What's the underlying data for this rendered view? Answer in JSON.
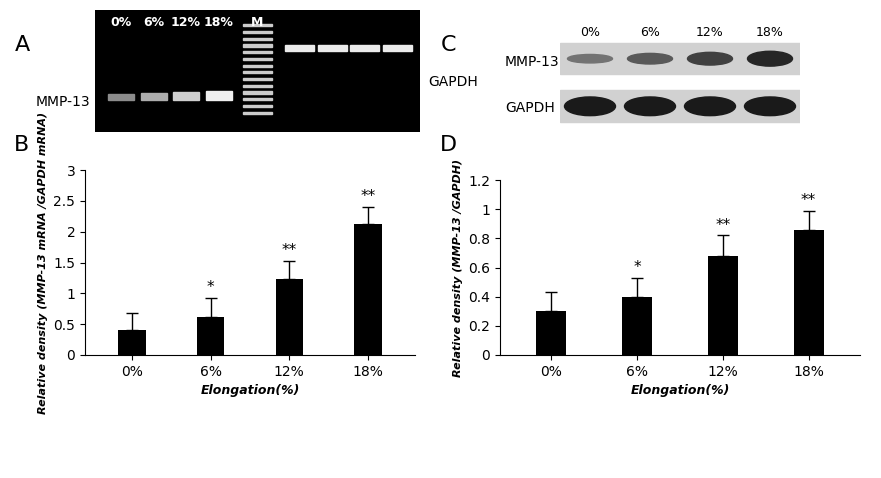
{
  "panel_labels": [
    "A",
    "B",
    "C",
    "D"
  ],
  "gels": [
    {
      "lanes": [
        "0%",
        "6%",
        "12%",
        "18%",
        "M"
      ],
      "bands": [
        "MMP-13",
        "GAPDH"
      ]
    },
    {
      "lanes": [
        "0%",
        "6%",
        "12%",
        "18%"
      ],
      "bands": [
        "MMP-13",
        "GAPDH"
      ]
    }
  ],
  "chart_data": [
    {
      "type": "bar",
      "categories": [
        "0%",
        "6%",
        "12%",
        "18%"
      ],
      "values": [
        0.4,
        0.62,
        1.23,
        2.12
      ],
      "errors": [
        0.28,
        0.3,
        0.3,
        0.28
      ],
      "significance": [
        null,
        "*",
        "**",
        "**"
      ],
      "x_label": "Elongation(%)",
      "y_label": "Relative density (MMP-13 mRNA /GAPDH mRNA)",
      "color": "#000000",
      "ylim": [
        0,
        3
      ],
      "yticks": [
        0,
        0.5,
        1,
        1.5,
        2,
        2.5,
        3
      ]
    },
    {
      "type": "bar",
      "categories": [
        "0%",
        "6%",
        "12%",
        "18%"
      ],
      "values": [
        0.3,
        0.4,
        0.68,
        0.86
      ],
      "errors": [
        0.13,
        0.13,
        0.14,
        0.13
      ],
      "significance": [
        null,
        "*",
        "**",
        "**"
      ],
      "x_label": "Elongation(%)",
      "y_label": "Relative density (MMP-13 /GAPDH)",
      "color": "#000000",
      "ylim": [
        0,
        1.2
      ],
      "yticks": [
        0,
        0.2,
        0.4,
        0.6,
        0.8,
        1,
        1.2
      ]
    }
  ]
}
